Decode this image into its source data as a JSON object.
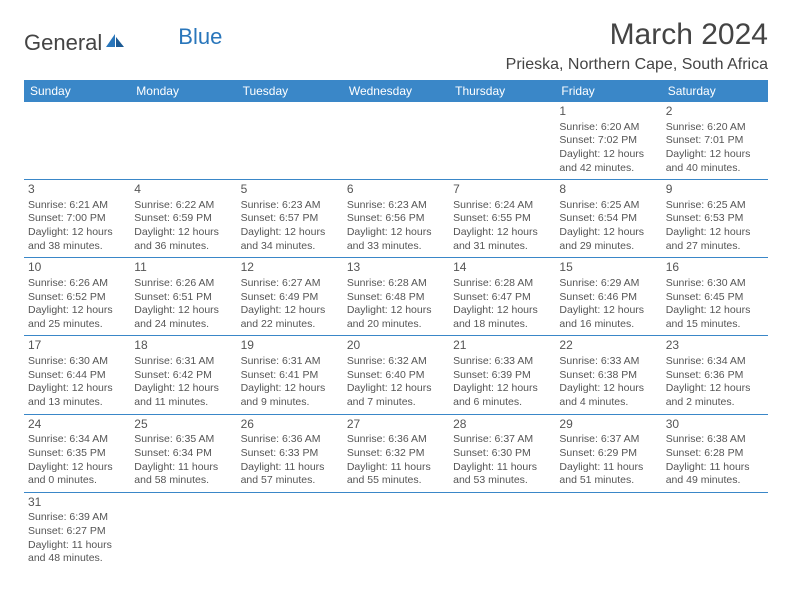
{
  "brand": {
    "text1": "General",
    "text2": "Blue"
  },
  "title": "March 2024",
  "location": "Prieska, Northern Cape, South Africa",
  "colors": {
    "header_bg": "#3a87c8",
    "header_text": "#ffffff",
    "border": "#3a87c8",
    "text": "#555555",
    "brand_blue": "#2976bb"
  },
  "day_headers": [
    "Sunday",
    "Monday",
    "Tuesday",
    "Wednesday",
    "Thursday",
    "Friday",
    "Saturday"
  ],
  "weeks": [
    [
      null,
      null,
      null,
      null,
      null,
      {
        "n": "1",
        "sr": "Sunrise: 6:20 AM",
        "ss": "Sunset: 7:02 PM",
        "dl": "Daylight: 12 hours and 42 minutes."
      },
      {
        "n": "2",
        "sr": "Sunrise: 6:20 AM",
        "ss": "Sunset: 7:01 PM",
        "dl": "Daylight: 12 hours and 40 minutes."
      }
    ],
    [
      {
        "n": "3",
        "sr": "Sunrise: 6:21 AM",
        "ss": "Sunset: 7:00 PM",
        "dl": "Daylight: 12 hours and 38 minutes."
      },
      {
        "n": "4",
        "sr": "Sunrise: 6:22 AM",
        "ss": "Sunset: 6:59 PM",
        "dl": "Daylight: 12 hours and 36 minutes."
      },
      {
        "n": "5",
        "sr": "Sunrise: 6:23 AM",
        "ss": "Sunset: 6:57 PM",
        "dl": "Daylight: 12 hours and 34 minutes."
      },
      {
        "n": "6",
        "sr": "Sunrise: 6:23 AM",
        "ss": "Sunset: 6:56 PM",
        "dl": "Daylight: 12 hours and 33 minutes."
      },
      {
        "n": "7",
        "sr": "Sunrise: 6:24 AM",
        "ss": "Sunset: 6:55 PM",
        "dl": "Daylight: 12 hours and 31 minutes."
      },
      {
        "n": "8",
        "sr": "Sunrise: 6:25 AM",
        "ss": "Sunset: 6:54 PM",
        "dl": "Daylight: 12 hours and 29 minutes."
      },
      {
        "n": "9",
        "sr": "Sunrise: 6:25 AM",
        "ss": "Sunset: 6:53 PM",
        "dl": "Daylight: 12 hours and 27 minutes."
      }
    ],
    [
      {
        "n": "10",
        "sr": "Sunrise: 6:26 AM",
        "ss": "Sunset: 6:52 PM",
        "dl": "Daylight: 12 hours and 25 minutes."
      },
      {
        "n": "11",
        "sr": "Sunrise: 6:26 AM",
        "ss": "Sunset: 6:51 PM",
        "dl": "Daylight: 12 hours and 24 minutes."
      },
      {
        "n": "12",
        "sr": "Sunrise: 6:27 AM",
        "ss": "Sunset: 6:49 PM",
        "dl": "Daylight: 12 hours and 22 minutes."
      },
      {
        "n": "13",
        "sr": "Sunrise: 6:28 AM",
        "ss": "Sunset: 6:48 PM",
        "dl": "Daylight: 12 hours and 20 minutes."
      },
      {
        "n": "14",
        "sr": "Sunrise: 6:28 AM",
        "ss": "Sunset: 6:47 PM",
        "dl": "Daylight: 12 hours and 18 minutes."
      },
      {
        "n": "15",
        "sr": "Sunrise: 6:29 AM",
        "ss": "Sunset: 6:46 PM",
        "dl": "Daylight: 12 hours and 16 minutes."
      },
      {
        "n": "16",
        "sr": "Sunrise: 6:30 AM",
        "ss": "Sunset: 6:45 PM",
        "dl": "Daylight: 12 hours and 15 minutes."
      }
    ],
    [
      {
        "n": "17",
        "sr": "Sunrise: 6:30 AM",
        "ss": "Sunset: 6:44 PM",
        "dl": "Daylight: 12 hours and 13 minutes."
      },
      {
        "n": "18",
        "sr": "Sunrise: 6:31 AM",
        "ss": "Sunset: 6:42 PM",
        "dl": "Daylight: 12 hours and 11 minutes."
      },
      {
        "n": "19",
        "sr": "Sunrise: 6:31 AM",
        "ss": "Sunset: 6:41 PM",
        "dl": "Daylight: 12 hours and 9 minutes."
      },
      {
        "n": "20",
        "sr": "Sunrise: 6:32 AM",
        "ss": "Sunset: 6:40 PM",
        "dl": "Daylight: 12 hours and 7 minutes."
      },
      {
        "n": "21",
        "sr": "Sunrise: 6:33 AM",
        "ss": "Sunset: 6:39 PM",
        "dl": "Daylight: 12 hours and 6 minutes."
      },
      {
        "n": "22",
        "sr": "Sunrise: 6:33 AM",
        "ss": "Sunset: 6:38 PM",
        "dl": "Daylight: 12 hours and 4 minutes."
      },
      {
        "n": "23",
        "sr": "Sunrise: 6:34 AM",
        "ss": "Sunset: 6:36 PM",
        "dl": "Daylight: 12 hours and 2 minutes."
      }
    ],
    [
      {
        "n": "24",
        "sr": "Sunrise: 6:34 AM",
        "ss": "Sunset: 6:35 PM",
        "dl": "Daylight: 12 hours and 0 minutes."
      },
      {
        "n": "25",
        "sr": "Sunrise: 6:35 AM",
        "ss": "Sunset: 6:34 PM",
        "dl": "Daylight: 11 hours and 58 minutes."
      },
      {
        "n": "26",
        "sr": "Sunrise: 6:36 AM",
        "ss": "Sunset: 6:33 PM",
        "dl": "Daylight: 11 hours and 57 minutes."
      },
      {
        "n": "27",
        "sr": "Sunrise: 6:36 AM",
        "ss": "Sunset: 6:32 PM",
        "dl": "Daylight: 11 hours and 55 minutes."
      },
      {
        "n": "28",
        "sr": "Sunrise: 6:37 AM",
        "ss": "Sunset: 6:30 PM",
        "dl": "Daylight: 11 hours and 53 minutes."
      },
      {
        "n": "29",
        "sr": "Sunrise: 6:37 AM",
        "ss": "Sunset: 6:29 PM",
        "dl": "Daylight: 11 hours and 51 minutes."
      },
      {
        "n": "30",
        "sr": "Sunrise: 6:38 AM",
        "ss": "Sunset: 6:28 PM",
        "dl": "Daylight: 11 hours and 49 minutes."
      }
    ],
    [
      {
        "n": "31",
        "sr": "Sunrise: 6:39 AM",
        "ss": "Sunset: 6:27 PM",
        "dl": "Daylight: 11 hours and 48 minutes."
      },
      null,
      null,
      null,
      null,
      null,
      null
    ]
  ]
}
